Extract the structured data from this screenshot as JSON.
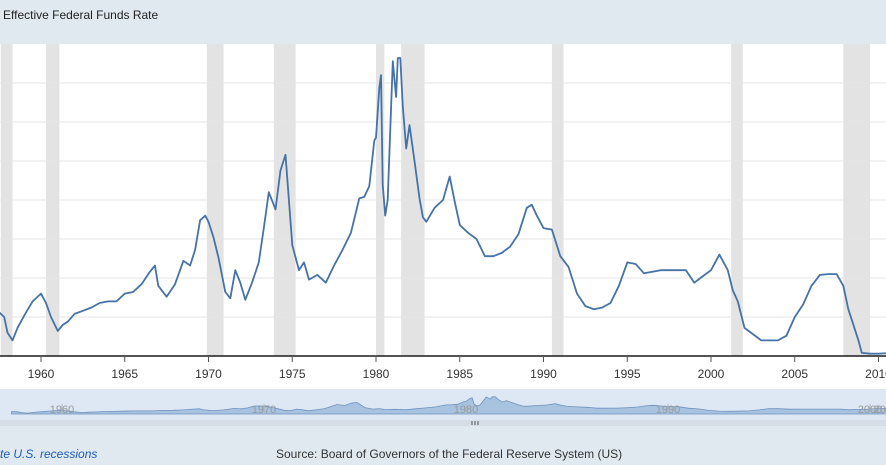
{
  "colors": {
    "line": "#4572a7",
    "recession": "#e3e3e3",
    "grid": "#e6e6e6",
    "background": "#ffffff",
    "navigatorFill": "#a7c3e0",
    "navigatorLine": "#6f92bf",
    "navigatorBg": "#dde8f4"
  },
  "chart_data": {
    "type": "line",
    "title": "Effective Federal Funds Rate",
    "xlim": [
      1957.5,
      2010.5
    ],
    "ylim": [
      0,
      20
    ],
    "grid": true,
    "x_ticks": [
      1960,
      1965,
      1970,
      1975,
      1980,
      1985,
      1990,
      1995,
      2000,
      2005,
      2010
    ],
    "x_tick_labels": [
      "1960",
      "1965",
      "1970",
      "1975",
      "1980",
      "1985",
      "1990",
      "1995",
      "2000",
      "2005",
      "2010"
    ],
    "recessions": [
      [
        1957.6,
        1958.3
      ],
      [
        1960.3,
        1961.1
      ],
      [
        1969.9,
        1970.9
      ],
      [
        1973.9,
        1975.2
      ],
      [
        1980.0,
        1980.5
      ],
      [
        1981.5,
        1982.9
      ],
      [
        1990.5,
        1991.2
      ],
      [
        2001.2,
        2001.9
      ],
      [
        2007.9,
        2009.5
      ]
    ],
    "series": [
      {
        "x": [
          1957.5,
          1957.8,
          1958.0,
          1958.3,
          1958.6,
          1959.0,
          1959.5,
          1960.0,
          1960.3,
          1960.6,
          1961.0,
          1961.3,
          1961.6,
          1962.0,
          1962.5,
          1963.0,
          1963.5,
          1964.0,
          1964.5,
          1965.0,
          1965.5,
          1966.0,
          1966.5,
          1966.8,
          1967.0,
          1967.5,
          1968.0,
          1968.5,
          1968.9,
          1969.2,
          1969.5,
          1969.8,
          1970.0,
          1970.3,
          1970.6,
          1971.0,
          1971.3,
          1971.6,
          1971.9,
          1972.2,
          1972.6,
          1973.0,
          1973.3,
          1973.6,
          1974.0,
          1974.3,
          1974.6,
          1975.0,
          1975.4,
          1975.7,
          1976.0,
          1976.5,
          1977.0,
          1977.5,
          1978.0,
          1978.5,
          1979.0,
          1979.3,
          1979.6,
          1979.9,
          1980.0,
          1980.2,
          1980.3,
          1980.4,
          1980.55,
          1980.7,
          1980.8,
          1981.0,
          1981.2,
          1981.3,
          1981.45,
          1981.6,
          1981.8,
          1982.0,
          1982.3,
          1982.6,
          1982.8,
          1983.0,
          1983.5,
          1984.0,
          1984.4,
          1984.7,
          1985.0,
          1985.5,
          1986.0,
          1986.5,
          1987.0,
          1987.5,
          1988.0,
          1988.5,
          1989.0,
          1989.3,
          1989.6,
          1990.0,
          1990.5,
          1991.0,
          1991.5,
          1992.0,
          1992.5,
          1993.0,
          1993.5,
          1994.0,
          1994.5,
          1995.0,
          1995.5,
          1996.0,
          1997.0,
          1998.0,
          1998.5,
          1999.0,
          1999.5,
          2000.0,
          2000.5,
          2001.0,
          2001.3,
          2001.6,
          2002.0,
          2003.0,
          2003.5,
          2004.0,
          2004.5,
          2005.0,
          2005.5,
          2006.0,
          2006.5,
          2007.0,
          2007.5,
          2007.9,
          2008.2,
          2008.5,
          2008.8,
          2009.0,
          2009.5,
          2010.0,
          2010.5
        ],
        "y": [
          2.8,
          2.5,
          1.5,
          1.0,
          1.8,
          2.6,
          3.5,
          4.0,
          3.4,
          2.5,
          1.6,
          2.0,
          2.2,
          2.7,
          2.9,
          3.1,
          3.4,
          3.5,
          3.5,
          4.0,
          4.1,
          4.6,
          5.4,
          5.8,
          4.5,
          3.8,
          4.6,
          6.1,
          5.8,
          6.8,
          8.7,
          9.0,
          8.6,
          7.6,
          6.3,
          4.1,
          3.7,
          5.5,
          4.7,
          3.6,
          4.7,
          6.0,
          8.2,
          10.5,
          9.4,
          11.9,
          12.9,
          7.1,
          5.5,
          6.0,
          4.9,
          5.2,
          4.7,
          5.8,
          6.8,
          7.9,
          10.1,
          10.2,
          10.9,
          13.8,
          14.0,
          17.2,
          18.0,
          11.0,
          9.0,
          10.0,
          13.0,
          18.9,
          16.6,
          19.1,
          19.1,
          16.0,
          13.3,
          14.8,
          12.5,
          10.1,
          8.9,
          8.6,
          9.5,
          10.0,
          11.5,
          9.9,
          8.4,
          7.9,
          7.5,
          6.4,
          6.4,
          6.6,
          7.0,
          7.8,
          9.5,
          9.7,
          9.0,
          8.2,
          8.1,
          6.4,
          5.7,
          4.0,
          3.2,
          3.0,
          3.1,
          3.4,
          4.5,
          6.0,
          5.9,
          5.3,
          5.5,
          5.5,
          5.5,
          4.7,
          5.1,
          5.5,
          6.5,
          5.5,
          4.2,
          3.5,
          1.8,
          1.0,
          1.0,
          1.0,
          1.3,
          2.5,
          3.3,
          4.5,
          5.2,
          5.25,
          5.25,
          4.5,
          3.0,
          2.0,
          1.0,
          0.2,
          0.15,
          0.15,
          0.18
        ]
      }
    ]
  },
  "navigator": {
    "tick_labels": [
      "1960",
      "1970",
      "1980",
      "1990",
      "2000",
      "20"
    ]
  },
  "footer": {
    "recession_note": "te U.S. recessions",
    "source": "Source: Board of Governors of the Federal Reserve System (US)"
  }
}
